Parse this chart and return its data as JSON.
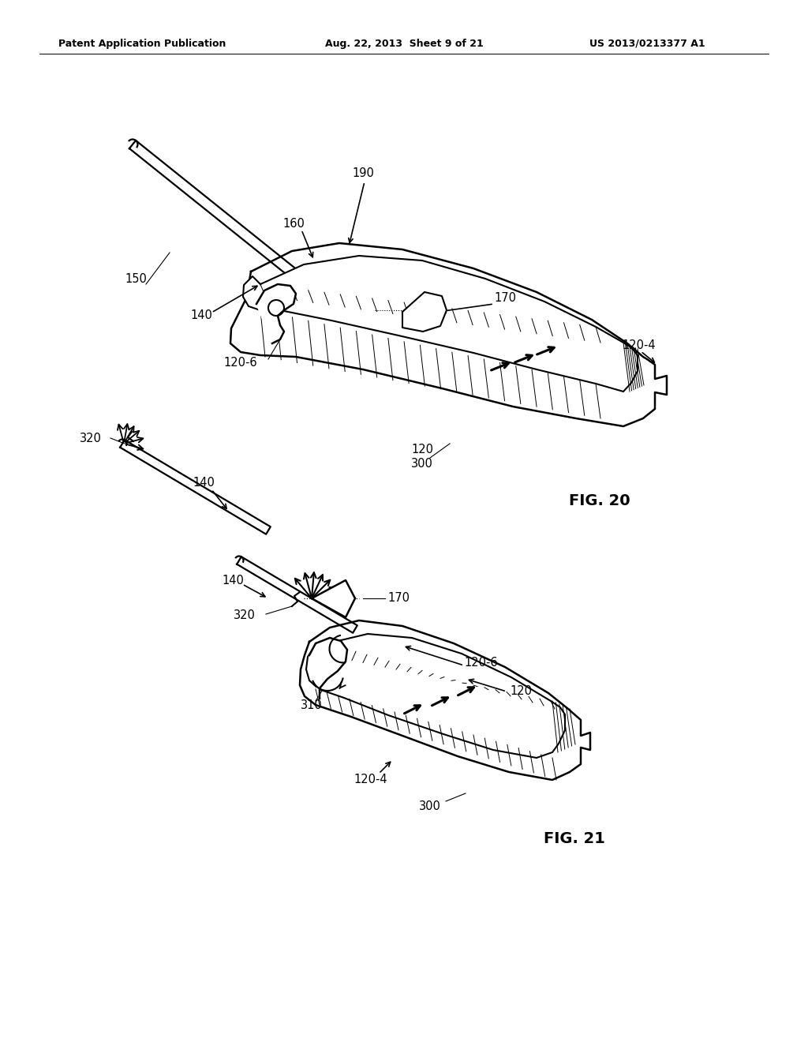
{
  "header_left": "Patent Application Publication",
  "header_mid": "Aug. 22, 2013  Sheet 9 of 21",
  "header_right": "US 2013/0213377 A1",
  "fig20_label": "FIG. 20",
  "fig21_label": "FIG. 21",
  "bg_color": "#ffffff",
  "line_color": "#000000"
}
